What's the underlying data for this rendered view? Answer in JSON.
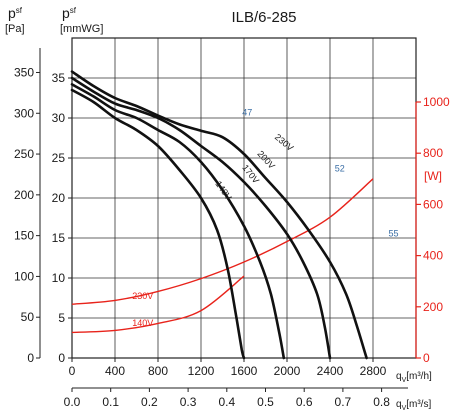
{
  "chart_data": {
    "type": "line",
    "title": "ILB/6-285",
    "left_axis": {
      "label_pa": [
        "p",
        "sf",
        "[Pa]"
      ],
      "label_mmwg": [
        "p",
        "sf",
        "[mmWG]"
      ],
      "pa_ticks": [
        "0",
        "50",
        "100",
        "150",
        "200",
        "250",
        "300",
        "350"
      ],
      "mmwg_ticks": [
        "0",
        "5",
        "10",
        "15",
        "20",
        "25",
        "30",
        "35"
      ],
      "mmwg_range": [
        0,
        40
      ]
    },
    "right_axis": {
      "label": "[W]",
      "ticks": [
        "0",
        "200",
        "400",
        "600",
        "800",
        "1000"
      ],
      "range": [
        0,
        1250
      ]
    },
    "x_axis": {
      "flow_ticks": [
        "0",
        "400",
        "800",
        "1200",
        "1600",
        "2000",
        "2400",
        "2800"
      ],
      "flow_unit": "[m³/h]",
      "flow_range": [
        0,
        3200
      ],
      "flow_label": "q",
      "flow_sub": "V",
      "ms_ticks": [
        "0.0",
        "0.1",
        "0.2",
        "0.3",
        "0.4",
        "0.5",
        "0.6",
        "0.7",
        "0.8"
      ],
      "ms_unit": "[m³/s]",
      "ms_label": "q",
      "ms_sub": "V"
    },
    "grid": true,
    "pressure_series": [
      {
        "name": "140V",
        "x": [
          0,
          200,
          400,
          600,
          800,
          1000,
          1200,
          1350,
          1450,
          1530,
          1580,
          1600
        ],
        "y": [
          33.5,
          32,
          30,
          28.5,
          26.5,
          23.5,
          20,
          16,
          11,
          5,
          1,
          0
        ]
      },
      {
        "name": "170V",
        "x": [
          0,
          200,
          400,
          600,
          800,
          1000,
          1200,
          1400,
          1600,
          1750,
          1850,
          1930,
          1970
        ],
        "y": [
          34.2,
          32.7,
          31,
          30,
          28.5,
          27,
          24.5,
          21,
          16.5,
          12,
          8,
          3,
          0
        ]
      },
      {
        "name": "200V",
        "x": [
          0,
          200,
          400,
          600,
          800,
          1000,
          1200,
          1400,
          1600,
          1800,
          2000,
          2150,
          2280,
          2350,
          2400
        ],
        "y": [
          35,
          33.3,
          31.8,
          31,
          30,
          28.5,
          26.5,
          24.5,
          22,
          19,
          15.5,
          12,
          8,
          4,
          0
        ]
      },
      {
        "name": "230V",
        "x": [
          0,
          200,
          400,
          600,
          800,
          1000,
          1200,
          1400,
          1600,
          1800,
          2000,
          2200,
          2400,
          2550,
          2650,
          2740
        ],
        "y": [
          35.8,
          34,
          32.5,
          31.5,
          30.3,
          29.2,
          28.4,
          27.6,
          25.5,
          22.5,
          19.5,
          16,
          12,
          8,
          4,
          0
        ]
      }
    ],
    "power_series": [
      {
        "name": "230V",
        "x": [
          0,
          400,
          800,
          1200,
          1600,
          2000,
          2400,
          2800
        ],
        "w": [
          210,
          225,
          260,
          310,
          375,
          455,
          550,
          700
        ]
      },
      {
        "name": "140V",
        "x": [
          0,
          400,
          800,
          1200,
          1600
        ],
        "w": [
          100,
          108,
          135,
          185,
          320
        ]
      }
    ],
    "annotations": {
      "efficiency": [
        {
          "label": "47",
          "x": 1640,
          "mmwg": 30.3
        },
        {
          "label": "52",
          "x": 2500,
          "mmwg": 23.3
        },
        {
          "label": "55",
          "x": 3000,
          "mmwg": 15.2
        },
        {
          "label": "55",
          "x": 3690,
          "mmwg": 1.0
        }
      ],
      "pressure_labels": [
        {
          "label": "230V",
          "x": 1880,
          "mmwg": 27.5,
          "angle": 40
        },
        {
          "label": "200V",
          "x": 1720,
          "mmwg": 25.5,
          "angle": 48
        },
        {
          "label": "170V",
          "x": 1580,
          "mmwg": 23.8,
          "angle": 52
        },
        {
          "label": "140V",
          "x": 1330,
          "mmwg": 21.8,
          "angle": 55
        }
      ],
      "power_labels": [
        {
          "label": "230V",
          "x": 560,
          "w": 230
        },
        {
          "label": "140V",
          "x": 560,
          "w": 125
        }
      ]
    }
  }
}
